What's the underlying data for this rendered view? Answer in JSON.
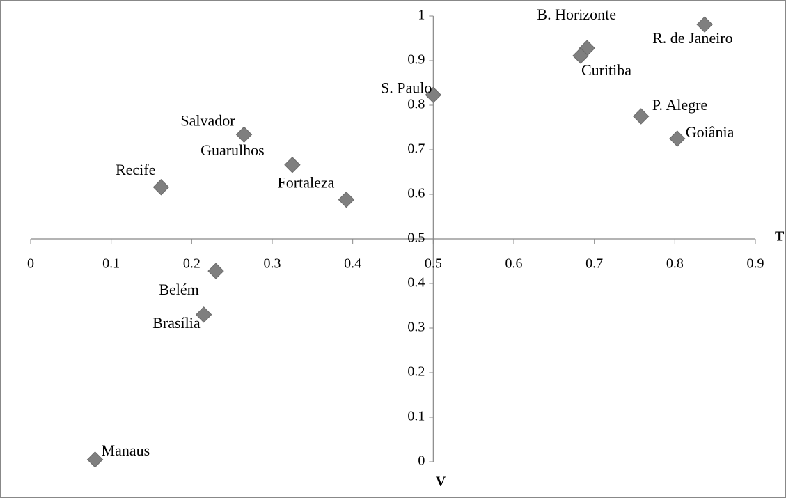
{
  "chart_data": {
    "type": "scatter",
    "x_label": "T",
    "y_label": "V",
    "labels": [
      "R. de Janeiro",
      "B. Horizonte",
      "Curitiba",
      "S. Paulo",
      "P. Alegre",
      "Goiânia",
      "Salvador",
      "Guarulhos",
      "Recife",
      "Fortaleza",
      "Belém",
      "Brasília",
      "Manaus"
    ],
    "series": [
      {
        "color": "#7f7f7f",
        "x": [
          0.837,
          0.691,
          0.683,
          0.5,
          0.758,
          0.803,
          0.265,
          0.325,
          0.162,
          0.392,
          0.23,
          0.215,
          0.08
        ],
        "values": [
          0.981,
          0.928,
          0.911,
          0.823,
          0.775,
          0.725,
          0.734,
          0.666,
          0.616,
          0.588,
          0.428,
          0.33,
          0.005
        ]
      }
    ],
    "xlim": [
      0,
      0.9
    ],
    "xticks": [
      0,
      0.1,
      0.2,
      0.3,
      0.4,
      0.5,
      0.6,
      0.7,
      0.8,
      0.9
    ],
    "ylim": [
      0,
      1
    ],
    "yticks": [
      0,
      0.1,
      0.2,
      0.3,
      0.4,
      0.5,
      0.6,
      0.7,
      0.8,
      0.9,
      1
    ],
    "axis_cross": [
      0.5,
      0.5
    ]
  }
}
